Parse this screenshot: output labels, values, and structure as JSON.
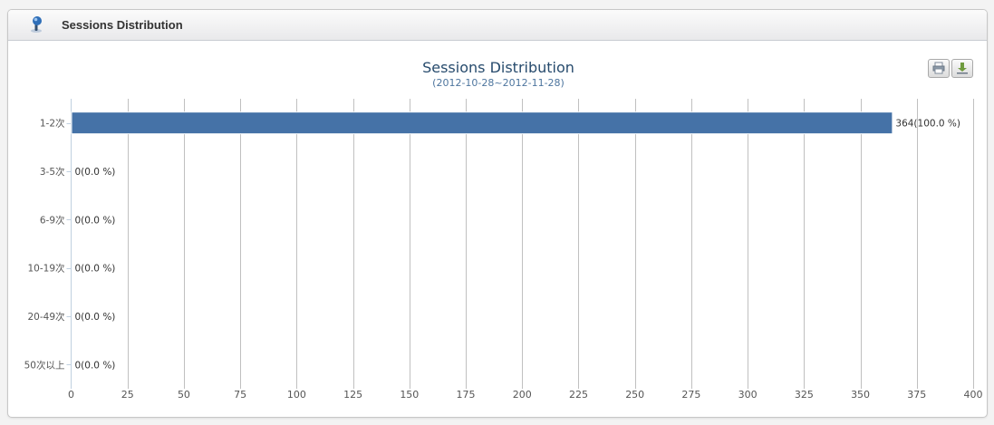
{
  "panel": {
    "title": "Sessions Distribution"
  },
  "toolbar": {
    "print_icon": "print-icon",
    "export_icon": "download-icon"
  },
  "colors": {
    "bar": "#4572a7",
    "title": "#274b6d",
    "subtitle": "#4d759e",
    "grid": "#c0c0c0",
    "axis_text": "#555555"
  },
  "chart_data": {
    "type": "bar",
    "orientation": "horizontal",
    "title": "Sessions Distribution",
    "subtitle": "(2012-10-28~2012-11-28)",
    "categories": [
      "1-2次",
      "3-5次",
      "6-9次",
      "10-19次",
      "20-49次",
      "50次以上"
    ],
    "values": [
      364,
      0,
      0,
      0,
      0,
      0
    ],
    "data_labels": [
      "364(100.0 %)",
      "0(0.0 %)",
      "0(0.0 %)",
      "0(0.0 %)",
      "0(0.0 %)",
      "0(0.0 %)"
    ],
    "xlim": [
      0,
      400
    ],
    "x_ticks": [
      0,
      25,
      50,
      75,
      100,
      125,
      150,
      175,
      200,
      225,
      250,
      275,
      300,
      325,
      350,
      375,
      400
    ],
    "grid": true,
    "legend": "none"
  }
}
